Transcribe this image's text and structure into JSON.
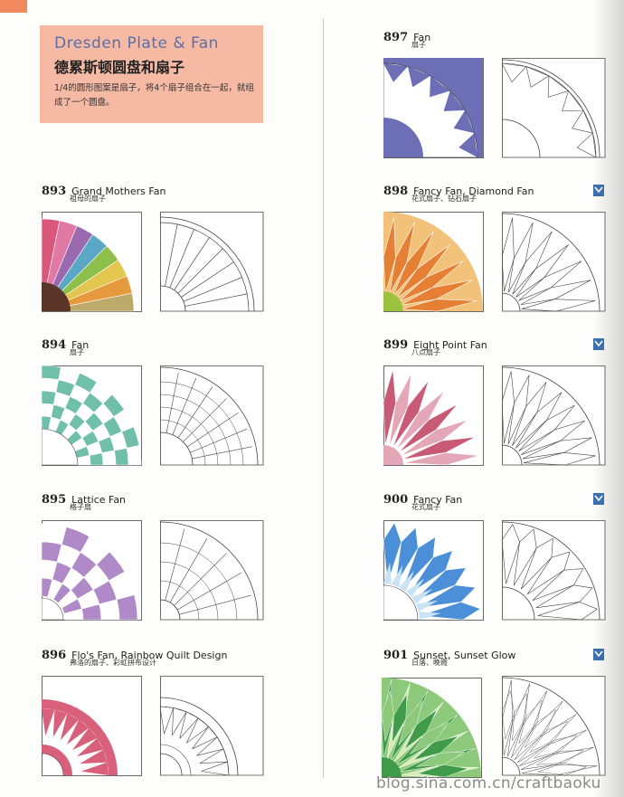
{
  "intro": {
    "title_en": "Dresden Plate & Fan",
    "title_cn": "德累斯顿圆盘和扇子",
    "description": "1/4的圆形图案是扇子，将4个扇子组合在一起，就组成了一个圆盘。"
  },
  "patterns": [
    {
      "id": "893",
      "number": "893",
      "name": "Grand Mothers Fan",
      "subtitle": "祖母的扇子",
      "colors": [
        "#d9577a",
        "#e07aa5",
        "#9a6ab0",
        "#5aa7c6",
        "#8dbf4a",
        "#e2c64e",
        "#e79a3d",
        "#bcaa6a",
        "#7a78b8",
        "#5a3528"
      ]
    },
    {
      "id": "894",
      "number": "894",
      "name": "Fan",
      "subtitle": "扇子",
      "colors": [
        "#6fbfab"
      ]
    },
    {
      "id": "895",
      "number": "895",
      "name": "Lattice Fan",
      "subtitle": "格子扇",
      "colors": [
        "#b08ac8"
      ]
    },
    {
      "id": "896",
      "number": "896",
      "name": "Flo's Fan, Rainbow Quilt Design",
      "subtitle": "弗洛的扇子、彩虹拼布设计",
      "colors": [
        "#d8607a"
      ]
    },
    {
      "id": "897",
      "number": "897",
      "name": "Fan",
      "subtitle": "扇子",
      "colors": [
        "#6d6fb6"
      ]
    },
    {
      "id": "898",
      "number": "898",
      "name": "Fancy Fan, Diamond Fan",
      "subtitle": "花式扇子、钻石扇子",
      "colors": [
        "#e57f34",
        "#f3c27a",
        "#9dc23e"
      ]
    },
    {
      "id": "899",
      "number": "899",
      "name": "Eight Point Fan",
      "subtitle": "八点扇子",
      "colors": [
        "#c85a76",
        "#e4a7b8"
      ]
    },
    {
      "id": "900",
      "number": "900",
      "name": "Fancy Fan",
      "subtitle": "花式扇子",
      "colors": [
        "#4b8fd8",
        "#c9e3f6"
      ]
    },
    {
      "id": "901",
      "number": "901",
      "name": "Sunset, Sunset Glow",
      "subtitle": "日落、晚霞",
      "colors": [
        "#3f9a4a",
        "#8cc97a",
        "#d6ebb6"
      ]
    }
  ],
  "watermark": "blog.sina.com.cn/craftbaoku",
  "colors": {
    "accent": "#f08a5d",
    "title_box": "#f6b9a4",
    "title_en": "#5a6fa8",
    "flag": "#3b6fb0"
  }
}
